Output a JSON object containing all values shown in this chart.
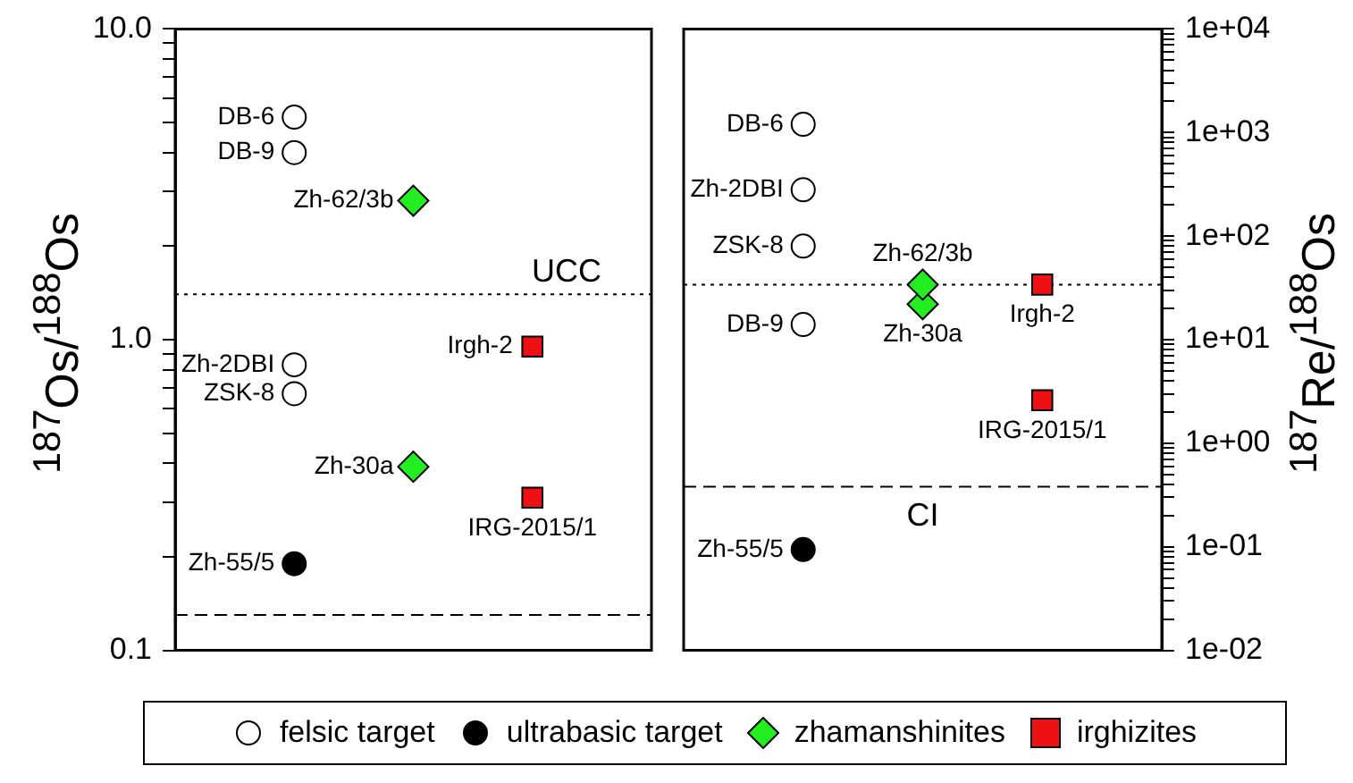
{
  "chart_data": [
    {
      "type": "scatter",
      "ylabel": "$^{187}$Os/$^{188}$Os",
      "log": "y",
      "categories": [
        null,
        null,
        null
      ],
      "ylim": [
        0.1,
        10
      ],
      "tick_labels": "y",
      "legend": "bottom",
      "yticks": [
        0.1,
        {
          "value": 0.2,
          "label": null
        },
        {
          "value": 0.3,
          "label": null
        },
        {
          "value": 0.4,
          "label": null
        },
        {
          "value": 0.5,
          "label": null
        },
        {
          "value": 0.6,
          "label": null
        },
        {
          "value": 0.7,
          "label": null
        },
        {
          "value": 0.8,
          "label": null
        },
        {
          "value": 0.9,
          "label": null
        },
        {
          "value": 1,
          "label": "1.0"
        },
        {
          "value": 2,
          "label": null
        },
        {
          "value": 3,
          "label": null
        },
        {
          "value": 4,
          "label": null
        },
        {
          "value": 5,
          "label": null
        },
        {
          "value": 6,
          "label": null
        },
        {
          "value": 7,
          "label": null
        },
        {
          "value": 8,
          "label": null
        },
        {
          "value": 9,
          "label": null
        },
        {
          "value": 10,
          "label": "10.0"
        }
      ],
      "ref_lines": [
        {
          "axis": "y",
          "value": 1.4,
          "label": "UCC",
          "line_style": "dotted",
          "color": "#000000"
        },
        {
          "axis": "y",
          "value": 0.13,
          "label": null,
          "line_style": "dashed",
          "color": "#000000"
        }
      ],
      "series": [
        {
          "name": "felsic target",
          "color": "#ffffff",
          "marker": "circle",
          "values": [
            5.2,
            null,
            null
          ],
          "value_labels": [
            "DB-6",
            null,
            null
          ]
        },
        {
          "color": "#ffffff",
          "marker": "circle",
          "values": [
            4.0,
            null,
            null
          ],
          "value_labels": [
            "DB-9",
            null,
            null
          ]
        },
        {
          "color": "#ffffff",
          "marker": "circle",
          "values": [
            0.83,
            null,
            null
          ],
          "value_labels": [
            "Zh-2DBI",
            null,
            null
          ]
        },
        {
          "color": "#ffffff",
          "marker": "circle",
          "values": [
            0.67,
            null,
            null
          ],
          "value_labels": [
            "ZSK-8",
            null,
            null
          ]
        },
        {
          "name": "ultrabasic target",
          "color": "#000000",
          "marker": "circle",
          "values": [
            0.19,
            null,
            null
          ],
          "value_labels": [
            "Zh-55/5",
            null,
            null
          ]
        },
        {
          "name": "zhamanshinites",
          "color": "#22ee22",
          "marker": "diamond",
          "values": [
            null,
            2.8,
            null
          ],
          "value_labels": [
            null,
            "Zh-62/3b",
            null
          ]
        },
        {
          "color": "#22ee22",
          "marker": "diamond",
          "values": [
            null,
            0.39,
            null
          ],
          "value_labels": [
            null,
            "Zh-30a",
            null
          ]
        },
        {
          "name": "irghizites",
          "color": "#ee1111",
          "marker": "square",
          "values": [
            null,
            null,
            0.95
          ],
          "value_labels": [
            null,
            null,
            "Irgh-2"
          ]
        },
        {
          "color": "#ee1111",
          "marker": "square",
          "values": [
            null,
            null,
            0.31
          ],
          "value_labels": [
            null,
            null,
            "IRG-2015/1"
          ]
        }
      ]
    },
    {
      "type": "scatter",
      "ylabel": "$^{187}$Re/$^{188}$Os",
      "log": "y",
      "categories": [
        null,
        null,
        null
      ],
      "ylim": [
        0.01,
        10000
      ],
      "tick_labels": "y",
      "yticks": [
        {
          "value": 0.01,
          "label": "1e-02"
        },
        {
          "value": 0.02,
          "label": null
        },
        {
          "value": 0.03,
          "label": null
        },
        {
          "value": 0.04,
          "label": null
        },
        {
          "value": 0.05,
          "label": null
        },
        {
          "value": 0.06,
          "label": null
        },
        {
          "value": 0.07,
          "label": null
        },
        {
          "value": 0.08,
          "label": null
        },
        {
          "value": 0.09,
          "label": null
        },
        {
          "value": 0.1,
          "label": "1e-01"
        },
        {
          "value": 0.2,
          "label": null
        },
        {
          "value": 0.3,
          "label": null
        },
        {
          "value": 0.4,
          "label": null
        },
        {
          "value": 0.5,
          "label": null
        },
        {
          "value": 0.6,
          "label": null
        },
        {
          "value": 0.7,
          "label": null
        },
        {
          "value": 0.8,
          "label": null
        },
        {
          "value": 0.9,
          "label": null
        },
        {
          "value": 1,
          "label": "1e+00"
        },
        {
          "value": 2,
          "label": null
        },
        {
          "value": 3,
          "label": null
        },
        {
          "value": 4,
          "label": null
        },
        {
          "value": 5,
          "label": null
        },
        {
          "value": 6,
          "label": null
        },
        {
          "value": 7,
          "label": null
        },
        {
          "value": 8,
          "label": null
        },
        {
          "value": 9,
          "label": null
        },
        {
          "value": 10,
          "label": "1e+01"
        },
        {
          "value": 20,
          "label": null
        },
        {
          "value": 30,
          "label": null
        },
        {
          "value": 40,
          "label": null
        },
        {
          "value": 50,
          "label": null
        },
        {
          "value": 60,
          "label": null
        },
        {
          "value": 70,
          "label": null
        },
        {
          "value": 80,
          "label": null
        },
        {
          "value": 90,
          "label": null
        },
        {
          "value": 100,
          "label": "1e+02"
        },
        {
          "value": 200,
          "label": null
        },
        {
          "value": 300,
          "label": null
        },
        {
          "value": 400,
          "label": null
        },
        {
          "value": 500,
          "label": null
        },
        {
          "value": 600,
          "label": null
        },
        {
          "value": 700,
          "label": null
        },
        {
          "value": 800,
          "label": null
        },
        {
          "value": 900,
          "label": null
        },
        {
          "value": 1000,
          "label": "1e+03"
        },
        {
          "value": 2000,
          "label": null
        },
        {
          "value": 3000,
          "label": null
        },
        {
          "value": 4000,
          "label": null
        },
        {
          "value": 5000,
          "label": null
        },
        {
          "value": 6000,
          "label": null
        },
        {
          "value": 7000,
          "label": null
        },
        {
          "value": 8000,
          "label": null
        },
        {
          "value": 9000,
          "label": null
        },
        {
          "value": 10000,
          "label": "1e+04"
        }
      ],
      "ref_lines": [
        {
          "axis": "y",
          "value": 34,
          "label": null,
          "line_style": "dotted",
          "color": "#000000"
        },
        {
          "axis": "y",
          "value": 0.38,
          "label": "CI",
          "line_style": "dashed",
          "color": "#000000"
        }
      ],
      "series": [
        {
          "color": "#ffffff",
          "marker": "circle",
          "values": [
            1200,
            null,
            null
          ],
          "value_labels": [
            "DB-6",
            null,
            null
          ]
        },
        {
          "color": "#ffffff",
          "marker": "circle",
          "values": [
            280,
            null,
            null
          ],
          "value_labels": [
            "Zh-2DBI",
            null,
            null
          ]
        },
        {
          "color": "#ffffff",
          "marker": "circle",
          "values": [
            80,
            null,
            null
          ],
          "value_labels": [
            "ZSK-8",
            null,
            null
          ]
        },
        {
          "color": "#ffffff",
          "marker": "circle",
          "values": [
            14,
            null,
            null
          ],
          "value_labels": [
            "DB-9",
            null,
            null
          ]
        },
        {
          "color": "#000000",
          "marker": "circle",
          "values": [
            0.094,
            null,
            null
          ],
          "value_labels": [
            "Zh-55/5",
            null,
            null
          ]
        },
        {
          "color": "#22ee22",
          "marker": "diamond",
          "values": [
            null,
            34,
            null
          ],
          "value_labels": [
            null,
            "Zh-62/3b",
            null
          ]
        },
        {
          "color": "#22ee22",
          "marker": "diamond",
          "values": [
            null,
            22,
            null
          ],
          "value_labels": [
            null,
            "Zh-30a",
            null
          ]
        },
        {
          "color": "#ee1111",
          "marker": "square",
          "values": [
            null,
            null,
            34
          ],
          "value_labels": [
            null,
            null,
            "Irgh-2"
          ]
        },
        {
          "color": "#ee1111",
          "marker": "square",
          "values": [
            null,
            null,
            2.6
          ],
          "value_labels": [
            null,
            null,
            "IRG-2015/1"
          ]
        }
      ]
    }
  ]
}
